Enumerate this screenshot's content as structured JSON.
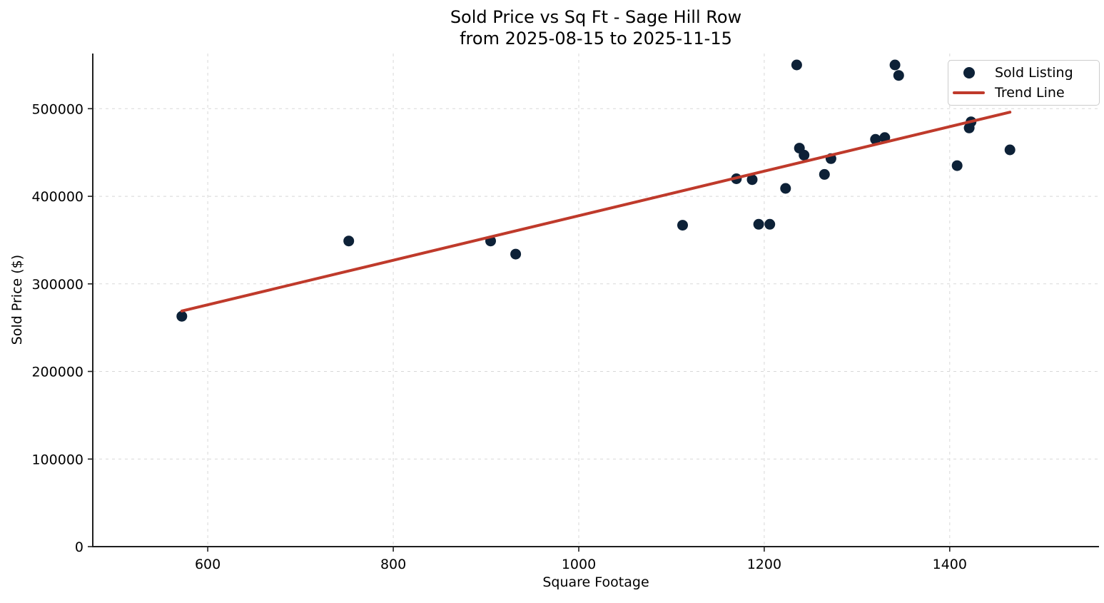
{
  "chart_data": {
    "type": "scatter",
    "title": "Sold Price vs Sq Ft - Sage Hill Row\nfrom 2025-08-15 to 2025-11-15",
    "title_line1": "Sold Price vs Sq Ft - Sage Hill Row",
    "title_line2": "from 2025-08-15 to 2025-11-15",
    "xlabel": "Square Footage",
    "ylabel": "Sold Price ($)",
    "xlim": [
      476,
      1561
    ],
    "ylim": [
      0,
      563000
    ],
    "xticks": [
      600,
      800,
      1000,
      1200,
      1400
    ],
    "yticks": [
      0,
      100000,
      200000,
      300000,
      400000,
      500000
    ],
    "grid": true,
    "legend_position": "upper right",
    "colors": {
      "point": "#0d2137",
      "trend": "#bf3a2b",
      "grid": "#d8d8d8",
      "axis": "#1f1f1f",
      "legend_border": "#cccccc"
    },
    "series": [
      {
        "name": "Sold Listing",
        "type": "scatter",
        "points": [
          [
            572,
            263000
          ],
          [
            752,
            349000
          ],
          [
            905,
            349000
          ],
          [
            932,
            334000
          ],
          [
            1112,
            367000
          ],
          [
            1170,
            420000
          ],
          [
            1187,
            419000
          ],
          [
            1194,
            368000
          ],
          [
            1206,
            368000
          ],
          [
            1223,
            409000
          ],
          [
            1235,
            550000
          ],
          [
            1238,
            455000
          ],
          [
            1243,
            447000
          ],
          [
            1265,
            425000
          ],
          [
            1272,
            443000
          ],
          [
            1320,
            465000
          ],
          [
            1330,
            467000
          ],
          [
            1341,
            550000
          ],
          [
            1345,
            538000
          ],
          [
            1408,
            435000
          ],
          [
            1421,
            478000
          ],
          [
            1423,
            485000
          ],
          [
            1465,
            453000
          ]
        ]
      },
      {
        "name": "Trend Line",
        "type": "line",
        "points": [
          [
            572,
            269000
          ],
          [
            1465,
            496000
          ]
        ]
      }
    ]
  }
}
